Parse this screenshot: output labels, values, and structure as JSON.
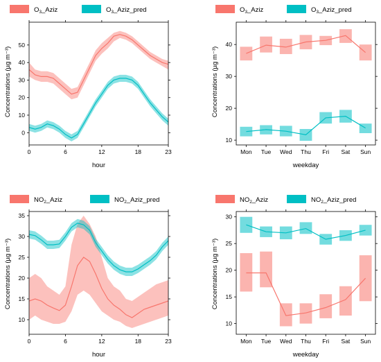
{
  "colors": {
    "red": "#F8766D",
    "teal": "#00BFC4"
  },
  "chart_data": [
    {
      "type": "line",
      "kind": "hour",
      "legend": [
        {
          "base": "O",
          "sub": "3",
          "rest": "_Aziz",
          "color": "red"
        },
        {
          "base": "O",
          "sub": "3",
          "rest": "_Aziz_pred",
          "color": "teal"
        }
      ],
      "xlabel": "hour",
      "ylabel": "Concentrations (µg m⁻³)",
      "xlim": [
        0,
        23
      ],
      "ylim": [
        -7,
        63
      ],
      "xticks": [
        0,
        6,
        12,
        18,
        23
      ],
      "yticks": [
        0,
        10,
        20,
        30,
        40,
        50
      ],
      "x": [
        0,
        1,
        2,
        3,
        4,
        5,
        6,
        7,
        8,
        9,
        10,
        11,
        12,
        13,
        14,
        15,
        16,
        17,
        18,
        19,
        20,
        21,
        22,
        23
      ],
      "series": [
        {
          "name": "O₃_Aziz",
          "color": "red",
          "values": [
            36,
            33,
            32,
            32,
            31,
            28,
            25,
            22,
            23,
            30,
            37,
            44,
            48,
            51,
            55,
            56,
            55,
            53,
            50,
            47,
            44,
            42,
            40,
            39
          ],
          "lower": [
            32,
            30,
            29,
            29,
            28,
            25,
            22,
            19,
            20,
            27,
            34,
            41,
            45,
            48,
            52,
            54,
            53,
            51,
            48,
            45,
            42,
            40,
            38,
            36
          ],
          "upper": [
            40,
            36,
            35,
            35,
            34,
            31,
            28,
            25,
            26,
            33,
            40,
            47,
            51,
            54,
            57,
            58,
            57,
            55,
            52,
            49,
            46,
            44,
            42,
            41
          ]
        },
        {
          "name": "O₃_Aziz_pred",
          "color": "teal",
          "values": [
            3,
            2,
            3,
            5,
            4,
            2,
            -1,
            -3,
            -1,
            5,
            11,
            17,
            22,
            27,
            30,
            31,
            31,
            30,
            27,
            22,
            17,
            13,
            9,
            6
          ],
          "lower": [
            1,
            0,
            1,
            3,
            2,
            0,
            -3,
            -5,
            -3,
            3,
            9,
            15,
            20,
            25,
            28,
            29,
            29,
            28,
            25,
            20,
            15,
            11,
            7,
            4
          ],
          "upper": [
            5,
            4,
            5,
            7,
            6,
            4,
            1,
            -1,
            1,
            7,
            13,
            19,
            24,
            29,
            32,
            33,
            33,
            32,
            29,
            24,
            19,
            15,
            11,
            8
          ]
        }
      ]
    },
    {
      "type": "line",
      "kind": "weekday",
      "legend": [
        {
          "base": "O",
          "sub": "3",
          "rest": "_Aziz",
          "color": "red"
        },
        {
          "base": "O",
          "sub": "3",
          "rest": "_Aziz_pred",
          "color": "teal"
        }
      ],
      "xlabel": "weekday",
      "ylabel": "Concentrations (µg m⁻³)",
      "ylim": [
        8.5,
        47
      ],
      "yticks": [
        10,
        20,
        30,
        40
      ],
      "categories": [
        "Mon",
        "Tue",
        "Wed",
        "Thu",
        "Fri",
        "Sat",
        "Sun"
      ],
      "series": [
        {
          "name": "O₃_Aziz",
          "color": "red",
          "values": [
            37.2,
            39.8,
            39.2,
            40.8,
            41.3,
            42.8,
            37.5
          ],
          "lower": [
            35,
            37.5,
            37,
            38.5,
            39.8,
            40.5,
            35
          ],
          "upper": [
            39.3,
            42.5,
            41.8,
            43,
            42.7,
            44.8,
            40
          ]
        },
        {
          "name": "O₃_Aziz_pred",
          "color": "teal",
          "values": [
            12.7,
            13.3,
            12.8,
            11.7,
            17.0,
            17.5,
            13.8
          ],
          "lower": [
            11.2,
            11.8,
            11.2,
            9.8,
            15.2,
            15.5,
            12.2
          ],
          "upper": [
            14.2,
            14.7,
            14.5,
            13.5,
            18.8,
            19.5,
            15.2
          ]
        }
      ]
    },
    {
      "type": "line",
      "kind": "hour",
      "legend": [
        {
          "base": "NO",
          "sub": "2",
          "rest": "_Aziz",
          "color": "red"
        },
        {
          "base": "NO",
          "sub": "2",
          "rest": "_Aziz_pred",
          "color": "teal"
        }
      ],
      "xlabel": "hour",
      "ylabel": "Concentrations (µg m⁻³)",
      "xlim": [
        0,
        23
      ],
      "ylim": [
        6.5,
        36
      ],
      "xticks": [
        0,
        6,
        12,
        18,
        23
      ],
      "yticks": [
        10,
        15,
        20,
        25,
        30,
        35
      ],
      "x": [
        0,
        1,
        2,
        3,
        4,
        5,
        6,
        7,
        8,
        9,
        10,
        11,
        12,
        13,
        14,
        15,
        16,
        17,
        18,
        19,
        20,
        21,
        22,
        23
      ],
      "series": [
        {
          "name": "NO₂_Aziz",
          "color": "red",
          "values": [
            14.5,
            15,
            14.5,
            13.5,
            12.8,
            12.2,
            13.5,
            18,
            23,
            25,
            24,
            21,
            17.5,
            15,
            13.5,
            12.5,
            11.2,
            10.5,
            11.5,
            12.5,
            13,
            13.5,
            14,
            14.5
          ],
          "lower": [
            10,
            11,
            10,
            9.5,
            9,
            9,
            9.5,
            12,
            16,
            17,
            16,
            14,
            12,
            11,
            10,
            9.5,
            8.5,
            8,
            8.5,
            9,
            9.5,
            10,
            10.5,
            11
          ],
          "upper": [
            20,
            21,
            20,
            18,
            17,
            16,
            18,
            28,
            33,
            35,
            33,
            30,
            25,
            20,
            18,
            17,
            15,
            14.5,
            15.5,
            16.5,
            17.5,
            18.5,
            19,
            19.5
          ]
        },
        {
          "name": "NO₂_Aziz_pred",
          "color": "teal",
          "values": [
            30.5,
            30.2,
            29.2,
            28,
            28,
            28.2,
            30,
            32.2,
            33.2,
            32.8,
            31.5,
            28.5,
            26.5,
            24.5,
            23,
            22,
            21.5,
            21.5,
            22.2,
            23.2,
            24.2,
            25.5,
            27.5,
            29
          ],
          "lower": [
            29.5,
            29.2,
            28.2,
            27,
            27,
            27.2,
            29,
            31.2,
            32.2,
            31.8,
            30.5,
            27.5,
            25.5,
            23.5,
            22,
            21,
            20.5,
            20.5,
            21.2,
            22.2,
            23.2,
            24.5,
            26.5,
            28
          ],
          "upper": [
            31.5,
            31.2,
            30.2,
            29,
            29,
            29.2,
            31,
            33.2,
            34.2,
            33.8,
            32.5,
            29.5,
            27.5,
            25.5,
            24,
            23,
            22.5,
            22.5,
            23.2,
            24.2,
            25.2,
            26.5,
            28.5,
            30
          ]
        }
      ]
    },
    {
      "type": "line",
      "kind": "weekday",
      "legend": [
        {
          "base": "NO",
          "sub": "2",
          "rest": "_Aziz",
          "color": "red"
        },
        {
          "base": "NO",
          "sub": "2",
          "rest": "_Aziz_pred",
          "color": "teal"
        }
      ],
      "xlabel": "weekday",
      "ylabel": "Concentrations (µg m⁻³)",
      "ylim": [
        8,
        31
      ],
      "yticks": [
        10,
        15,
        20,
        25,
        30
      ],
      "categories": [
        "Mon",
        "Tue",
        "Wed",
        "Thu",
        "Fri",
        "Sat",
        "Sun"
      ],
      "series": [
        {
          "name": "NO₂_Aziz",
          "color": "red",
          "values": [
            19.5,
            19.5,
            11.5,
            12,
            13,
            14.5,
            18.5
          ],
          "lower": [
            16,
            16.8,
            9.5,
            10,
            11,
            11.5,
            14.2
          ],
          "upper": [
            23.2,
            23.5,
            13.8,
            13.8,
            15.5,
            17,
            22.8
          ]
        },
        {
          "name": "NO₂_Aziz_pred",
          "color": "teal",
          "values": [
            28.5,
            27.2,
            27,
            27.8,
            25.8,
            26.5,
            27.5
          ],
          "lower": [
            27,
            26.2,
            25.8,
            26.8,
            24.8,
            25.5,
            26.5
          ],
          "upper": [
            30,
            28.2,
            28.2,
            29,
            26.8,
            27.5,
            28.5
          ]
        }
      ]
    }
  ]
}
